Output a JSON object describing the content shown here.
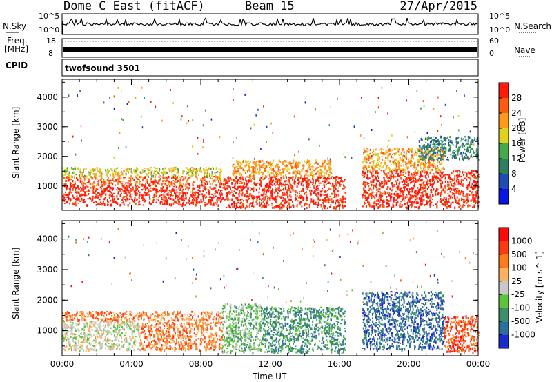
{
  "header": {
    "title": "Dome C East (fitACF)",
    "beam": "Beam 15",
    "date": "27/Apr/2015"
  },
  "status_panels": {
    "nsky_label": "N.Sky",
    "nsky_ticks": [
      "10^5",
      "10^0"
    ],
    "nsearch_label": "N.Search",
    "nsearch_ticks": [
      "10^5",
      "10^0"
    ],
    "freq_label": "Freq.",
    "freq_unit": "[MHz]",
    "freq_ticks": [
      "18",
      "8"
    ],
    "nave_label": "Nave",
    "nave_ticks": [
      "60",
      "0"
    ],
    "cpid_label": "CPID",
    "cpid_value": "twofsound 3501"
  },
  "chart_data": [
    {
      "type": "heatmap",
      "name": "power-panel",
      "ylabel": "Slant Range [km]",
      "xlabel": "",
      "x_ticks": [
        "00:00",
        "04:00",
        "08:00",
        "12:00",
        "16:00",
        "20:00",
        "00:00"
      ],
      "y_ticks": [
        1000,
        2000,
        3000,
        4000
      ],
      "ylim": [
        180,
        4600
      ],
      "xlim_hours": [
        0,
        24
      ],
      "colorbar": {
        "label": "Power [dB]",
        "ticks": [
          "4",
          "8",
          "12",
          "16",
          "20",
          "24",
          "28"
        ],
        "range": [
          0,
          30
        ],
        "colors": [
          "#0a14e6",
          "#1f4bb5",
          "#2f7f5f",
          "#44a84c",
          "#e0d21c",
          "#ff9a1a",
          "#ff5a10",
          "#ff1a0a"
        ]
      },
      "regions": [
        {
          "t0": 0.0,
          "t1": 9.2,
          "r0": 380,
          "r1": 1050,
          "level": 7
        },
        {
          "t0": 0.0,
          "t1": 9.2,
          "r0": 1050,
          "r1": 1350,
          "level": 6
        },
        {
          "t0": 0.0,
          "t1": 9.2,
          "r0": 1350,
          "r1": 1650,
          "level": 4
        },
        {
          "t0": 9.2,
          "t1": 16.3,
          "r0": 280,
          "r1": 1350,
          "level": 7
        },
        {
          "t0": 9.8,
          "t1": 15.5,
          "r0": 1350,
          "r1": 1900,
          "level": 5
        },
        {
          "t0": 17.3,
          "t1": 24.0,
          "r0": 300,
          "r1": 1550,
          "level": 7
        },
        {
          "t0": 17.3,
          "t1": 22.0,
          "r0": 1550,
          "r1": 2300,
          "level": 5
        },
        {
          "t0": 20.5,
          "t1": 24.0,
          "r0": 1900,
          "r1": 2700,
          "level": 2
        }
      ]
    },
    {
      "type": "heatmap",
      "name": "velocity-panel",
      "ylabel": "Slant Range [km]",
      "xlabel": "Time UT",
      "x_ticks": [
        "00:00",
        "04:00",
        "08:00",
        "12:00",
        "16:00",
        "20:00",
        "00:00"
      ],
      "y_ticks": [
        1000,
        2000,
        3000,
        4000
      ],
      "ylim": [
        180,
        4600
      ],
      "xlim_hours": [
        0,
        24
      ],
      "colorbar": {
        "label": "Velocity [m s^-1]",
        "ticks": [
          "1000",
          "500",
          "100",
          "25",
          "-25",
          "-100",
          "-500",
          "-1000"
        ],
        "colors": [
          "#1a2ad0",
          "#2e6f9a",
          "#3c8f6a",
          "#5cc43c",
          "#c8c8c8",
          "#ffb060",
          "#ff7a1a",
          "#ff3a10",
          "#ff0a0a"
        ]
      },
      "regions": [
        {
          "t0": 0.0,
          "t1": 4.5,
          "r0": 380,
          "r1": 1350,
          "level": 4
        },
        {
          "t0": 0.0,
          "t1": 9.2,
          "r0": 1350,
          "r1": 1650,
          "level": 6
        },
        {
          "t0": 4.5,
          "t1": 9.2,
          "r0": 380,
          "r1": 1300,
          "level": 6
        },
        {
          "t0": 9.2,
          "t1": 11.5,
          "r0": 300,
          "r1": 1900,
          "level": 3
        },
        {
          "t0": 11.5,
          "t1": 16.3,
          "r0": 300,
          "r1": 1800,
          "level": 2
        },
        {
          "t0": 17.3,
          "t1": 22.0,
          "r0": 400,
          "r1": 2300,
          "level": 1
        },
        {
          "t0": 22.0,
          "t1": 24.0,
          "r0": 300,
          "r1": 1500,
          "level": 7
        }
      ]
    }
  ]
}
